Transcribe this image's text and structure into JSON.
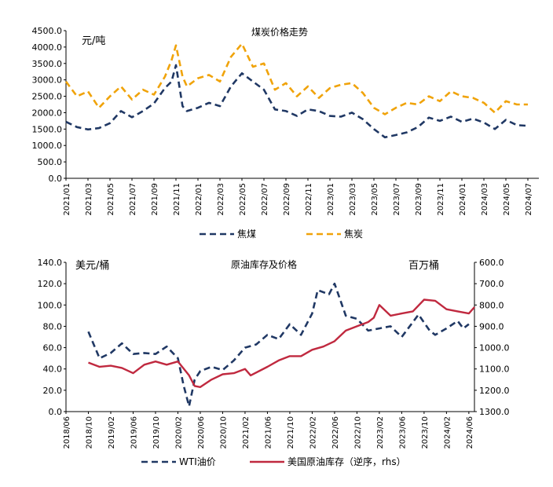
{
  "chart_data": [
    {
      "type": "line",
      "title": "煤炭价格走势",
      "unit_label": "元/吨",
      "ylim": [
        0,
        4500
      ],
      "yticks": [
        "0.0",
        "500.0",
        "1000.0",
        "1500.0",
        "2000.0",
        "2500.0",
        "3000.0",
        "3500.0",
        "4000.0",
        "4500.0"
      ],
      "x_tick_labels": [
        "2021/01",
        "2021/03",
        "2021/05",
        "2021/07",
        "2021/09",
        "2021/11",
        "2022/01",
        "2022/03",
        "2022/05",
        "2022/07",
        "2022/09",
        "2022/11",
        "2023/01",
        "2023/03",
        "2023/05",
        "2023/07",
        "2023/09",
        "2023/11",
        "2024/01",
        "2024/03",
        "2024/05",
        "2024/07"
      ],
      "x_start": "2021/01",
      "legend_position": "bottom",
      "series": [
        {
          "name": "焦煤",
          "color": "#203864",
          "style": "dashed",
          "points": [
            [
              "2021/01",
              1720
            ],
            [
              "2021/02",
              1560
            ],
            [
              "2021/03",
              1490
            ],
            [
              "2021/04",
              1530
            ],
            [
              "2021/05",
              1680
            ],
            [
              "2021/06",
              2050
            ],
            [
              "2021/07",
              1860
            ],
            [
              "2021/08",
              2050
            ],
            [
              "2021/09",
              2280
            ],
            [
              "2021/10",
              2750
            ],
            [
              "2021/10.6",
              2950
            ],
            [
              "2021/11",
              3450
            ],
            [
              "2021/11.6",
              2200
            ],
            [
              "2021/12",
              2050
            ],
            [
              "2022/01",
              2150
            ],
            [
              "2022/02",
              2300
            ],
            [
              "2022/03",
              2200
            ],
            [
              "2022/04",
              2800
            ],
            [
              "2022/05",
              3200
            ],
            [
              "2022/06",
              2950
            ],
            [
              "2022/07",
              2700
            ],
            [
              "2022/08",
              2100
            ],
            [
              "2022/09",
              2050
            ],
            [
              "2022/10",
              1900
            ],
            [
              "2022/11",
              2100
            ],
            [
              "2022/12",
              2050
            ],
            [
              "2023/01",
              1900
            ],
            [
              "2023/02",
              1880
            ],
            [
              "2023/03",
              2000
            ],
            [
              "2023/04",
              1800
            ],
            [
              "2023/05",
              1500
            ],
            [
              "2023/06",
              1250
            ],
            [
              "2023/07",
              1320
            ],
            [
              "2023/08",
              1400
            ],
            [
              "2023/09",
              1560
            ],
            [
              "2023/10",
              1850
            ],
            [
              "2023/11",
              1750
            ],
            [
              "2023/12",
              1880
            ],
            [
              "2024/01",
              1720
            ],
            [
              "2024/02",
              1820
            ],
            [
              "2024/03",
              1700
            ],
            [
              "2024/04",
              1500
            ],
            [
              "2024/05",
              1780
            ],
            [
              "2024/06",
              1620
            ],
            [
              "2024/07",
              1600
            ]
          ]
        },
        {
          "name": "焦炭",
          "color": "#f0a30a",
          "style": "dashed",
          "points": [
            [
              "2021/01",
              2950
            ],
            [
              "2021/02",
              2500
            ],
            [
              "2021/03",
              2650
            ],
            [
              "2021/04",
              2150
            ],
            [
              "2021/05",
              2500
            ],
            [
              "2021/06",
              2800
            ],
            [
              "2021/07",
              2400
            ],
            [
              "2021/08",
              2700
            ],
            [
              "2021/09",
              2550
            ],
            [
              "2021/10",
              3100
            ],
            [
              "2021/10.6",
              3600
            ],
            [
              "2021/11",
              4050
            ],
            [
              "2021/11.6",
              3100
            ],
            [
              "2021/12",
              2800
            ],
            [
              "2022/01",
              3050
            ],
            [
              "2022/02",
              3150
            ],
            [
              "2022/03",
              2950
            ],
            [
              "2022/04",
              3700
            ],
            [
              "2022/05",
              4100
            ],
            [
              "2022/06",
              3400
            ],
            [
              "2022/07",
              3500
            ],
            [
              "2022/08",
              2700
            ],
            [
              "2022/09",
              2900
            ],
            [
              "2022/10",
              2500
            ],
            [
              "2022/11",
              2800
            ],
            [
              "2022/12",
              2450
            ],
            [
              "2023/01",
              2750
            ],
            [
              "2023/02",
              2850
            ],
            [
              "2023/03",
              2900
            ],
            [
              "2023/04",
              2600
            ],
            [
              "2023/05",
              2150
            ],
            [
              "2023/06",
              1950
            ],
            [
              "2023/07",
              2150
            ],
            [
              "2023/08",
              2300
            ],
            [
              "2023/09",
              2250
            ],
            [
              "2023/10",
              2500
            ],
            [
              "2023/11",
              2350
            ],
            [
              "2023/12",
              2650
            ],
            [
              "2024/01",
              2500
            ],
            [
              "2024/02",
              2450
            ],
            [
              "2024/03",
              2300
            ],
            [
              "2024/04",
              2000
            ],
            [
              "2024/05",
              2350
            ],
            [
              "2024/06",
              2250
            ],
            [
              "2024/07",
              2250
            ]
          ]
        }
      ]
    },
    {
      "type": "line",
      "title": "原油库存及价格",
      "left_unit_label": "美元/桶",
      "right_unit_label": "百万桶",
      "ylim_left": [
        0,
        140
      ],
      "ylim_right": [
        600,
        1300
      ],
      "right_axis_inverted": true,
      "yticks_left": [
        "0.0",
        "20.0",
        "40.0",
        "60.0",
        "80.0",
        "100.0",
        "120.0",
        "140.0"
      ],
      "yticks_right": [
        "600.0",
        "700.0",
        "800.0",
        "900.0",
        "1000.0",
        "1100.0",
        "1200.0",
        "1300.0"
      ],
      "x_tick_labels": [
        "2018/06",
        "2018/10",
        "2019/02",
        "2019/06",
        "2019/10",
        "2020/02",
        "2020/06",
        "2020/10",
        "2021/02",
        "2021/06",
        "2021/10",
        "2022/02",
        "2022/06",
        "2022/10",
        "2023/02",
        "2023/06",
        "2023/10",
        "2024/02",
        "2024/06"
      ],
      "x_start": "2018/06",
      "legend_position": "bottom",
      "series": [
        {
          "name": "WTI油价",
          "axis": "left",
          "color": "#203864",
          "style": "dashed",
          "points": [
            [
              "2018/10",
              75
            ],
            [
              "2018/12",
              50
            ],
            [
              "2019/02",
              55
            ],
            [
              "2019/04",
              64
            ],
            [
              "2019/06",
              54
            ],
            [
              "2019/08",
              55
            ],
            [
              "2019/10",
              54
            ],
            [
              "2019/12",
              61
            ],
            [
              "2020/02",
              50
            ],
            [
              "2020/03",
              25
            ],
            [
              "2020/04",
              5
            ],
            [
              "2020/05",
              30
            ],
            [
              "2020/06",
              38
            ],
            [
              "2020/08",
              42
            ],
            [
              "2020/10",
              39
            ],
            [
              "2020/12",
              48
            ],
            [
              "2021/02",
              60
            ],
            [
              "2021/04",
              63
            ],
            [
              "2021/06",
              72
            ],
            [
              "2021/08",
              68
            ],
            [
              "2021/10",
              82
            ],
            [
              "2021/12",
              72
            ],
            [
              "2022/02",
              92
            ],
            [
              "2022/03",
              114
            ],
            [
              "2022/05",
              110
            ],
            [
              "2022/06",
              120
            ],
            [
              "2022/08",
              90
            ],
            [
              "2022/10",
              87
            ],
            [
              "2022/12",
              76
            ],
            [
              "2023/02",
              78
            ],
            [
              "2023/04",
              80
            ],
            [
              "2023/06",
              70
            ],
            [
              "2023/09",
              91
            ],
            [
              "2023/11",
              76
            ],
            [
              "2023/12",
              72
            ],
            [
              "2024/02",
              78
            ],
            [
              "2024/04",
              85
            ],
            [
              "2024/05",
              78
            ],
            [
              "2024/06",
              82
            ]
          ]
        },
        {
          "name": "美国原油库存（逆序，rhs）",
          "axis": "right",
          "color": "#c0293f",
          "style": "solid",
          "points": [
            [
              "2018/10",
              1070
            ],
            [
              "2018/12",
              1090
            ],
            [
              "2019/02",
              1085
            ],
            [
              "2019/04",
              1095
            ],
            [
              "2019/06",
              1120
            ],
            [
              "2019/08",
              1080
            ],
            [
              "2019/10",
              1065
            ],
            [
              "2019/12",
              1080
            ],
            [
              "2020/02",
              1065
            ],
            [
              "2020/04",
              1130
            ],
            [
              "2020/05",
              1180
            ],
            [
              "2020/06",
              1185
            ],
            [
              "2020/08",
              1150
            ],
            [
              "2020/10",
              1125
            ],
            [
              "2020/12",
              1120
            ],
            [
              "2021/02",
              1100
            ],
            [
              "2021/03",
              1130
            ],
            [
              "2021/06",
              1090
            ],
            [
              "2021/08",
              1060
            ],
            [
              "2021/10",
              1040
            ],
            [
              "2021/12",
              1040
            ],
            [
              "2022/02",
              1010
            ],
            [
              "2022/04",
              995
            ],
            [
              "2022/06",
              970
            ],
            [
              "2022/08",
              920
            ],
            [
              "2022/10",
              900
            ],
            [
              "2022/12",
              880
            ],
            [
              "2023/01",
              860
            ],
            [
              "2023/02",
              800
            ],
            [
              "2023/04",
              850
            ],
            [
              "2023/06",
              840
            ],
            [
              "2023/08",
              830
            ],
            [
              "2023/10",
              775
            ],
            [
              "2023/12",
              780
            ],
            [
              "2024/02",
              820
            ],
            [
              "2024/04",
              830
            ],
            [
              "2024/06",
              840
            ],
            [
              "2024/07",
              810
            ]
          ]
        }
      ]
    }
  ]
}
